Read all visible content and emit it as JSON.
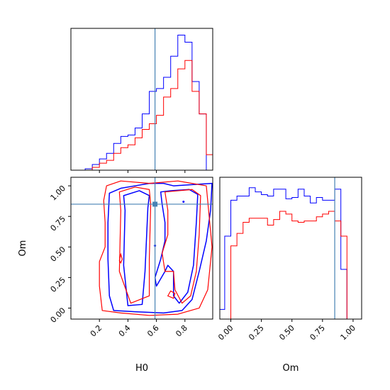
{
  "chart_data": {
    "type": "corner",
    "colors": {
      "series_a": "#0000ff",
      "series_b": "#ff0000",
      "truth": "#4682b4",
      "frame": "#000000"
    },
    "truth": {
      "H0": 0.59,
      "Om": 0.85
    },
    "axes": {
      "H0": {
        "label": "H0",
        "range": [
          0.0,
          0.995
        ],
        "ticks": [
          0.2,
          0.4,
          0.6,
          0.8
        ],
        "tick_labels": [
          "0.2",
          "0.4",
          "0.6",
          "0.8"
        ]
      },
      "Om": {
        "label": "Om",
        "range": [
          -0.09,
          1.07
        ],
        "ticks": [
          0.0,
          0.25,
          0.5,
          0.75,
          1.0
        ],
        "tick_labels": [
          "0.00",
          "0.25",
          "0.50",
          "0.75",
          "1.00"
        ]
      }
    },
    "hist_H0": {
      "bin_edges": [
        0.0,
        0.05,
        0.1,
        0.15,
        0.2,
        0.25,
        0.3,
        0.35,
        0.4,
        0.45,
        0.5,
        0.55,
        0.6,
        0.65,
        0.7,
        0.75,
        0.8,
        0.85,
        0.9,
        0.95,
        1.0
      ],
      "series": [
        {
          "values": [
            0,
            0,
            1,
            4,
            8,
            12,
            19,
            24,
            25,
            30,
            40,
            56,
            58,
            66,
            81,
            96,
            91,
            63,
            40,
            0
          ]
        },
        {
          "values": [
            0,
            0,
            0,
            2,
            5,
            7,
            12,
            16,
            18,
            23,
            29,
            33,
            39,
            52,
            58,
            72,
            78,
            56,
            40,
            11
          ]
        }
      ]
    },
    "hist_Om": {
      "bin_edges": [
        -0.1,
        -0.05,
        0.0,
        0.05,
        0.1,
        0.15,
        0.2,
        0.25,
        0.3,
        0.35,
        0.4,
        0.45,
        0.5,
        0.55,
        0.6,
        0.65,
        0.7,
        0.75,
        0.8,
        0.85,
        0.9,
        0.95,
        1.0,
        1.05
      ],
      "series": [
        {
          "values": [
            7,
            60,
            86,
            89,
            89,
            95,
            92,
            90,
            89,
            94,
            94,
            87,
            88,
            94,
            89,
            84,
            88,
            86,
            86,
            94,
            36,
            0,
            0
          ]
        },
        {
          "values": [
            0,
            0,
            53,
            62,
            70,
            73,
            73,
            73,
            68,
            72,
            78,
            76,
            71,
            70,
            71,
            71,
            74,
            76,
            78,
            71,
            60,
            0,
            0
          ]
        }
      ]
    },
    "contours": [
      {
        "series": 0,
        "outer": [
          [
            0.27,
            0.94
          ],
          [
            0.35,
            0.98
          ],
          [
            0.45,
            1.0
          ],
          [
            0.55,
            1.02
          ],
          [
            0.65,
            1.02
          ],
          [
            0.72,
            1.0
          ],
          [
            0.85,
            1.01
          ],
          [
            0.99,
            1.02
          ],
          [
            0.98,
            0.8
          ],
          [
            0.95,
            0.55
          ],
          [
            0.9,
            0.3
          ],
          [
            0.85,
            0.07
          ],
          [
            0.78,
            -0.02
          ],
          [
            0.65,
            -0.04
          ],
          [
            0.45,
            -0.03
          ],
          [
            0.3,
            -0.02
          ],
          [
            0.27,
            0.1
          ],
          [
            0.26,
            0.4
          ],
          [
            0.26,
            0.7
          ],
          [
            0.27,
            0.94
          ]
        ],
        "inner": [
          [
            [
              0.37,
              0.92
            ],
            [
              0.48,
              0.96
            ],
            [
              0.55,
              0.92
            ],
            [
              0.54,
              0.82
            ],
            [
              0.52,
              0.3
            ],
            [
              0.5,
              0.03
            ],
            [
              0.4,
              0.02
            ],
            [
              0.37,
              0.35
            ],
            [
              0.38,
              0.8
            ],
            [
              0.37,
              0.92
            ]
          ],
          [
            [
              0.63,
              0.95
            ],
            [
              0.7,
              0.96
            ],
            [
              0.83,
              0.97
            ],
            [
              0.89,
              0.93
            ],
            [
              0.88,
              0.7
            ],
            [
              0.86,
              0.35
            ],
            [
              0.82,
              0.13
            ],
            [
              0.76,
              0.04
            ],
            [
              0.72,
              0.1
            ],
            [
              0.72,
              0.3
            ],
            [
              0.68,
              0.35
            ],
            [
              0.66,
              0.3
            ],
            [
              0.6,
              0.18
            ],
            [
              0.59,
              0.25
            ],
            [
              0.63,
              0.4
            ],
            [
              0.66,
              0.55
            ],
            [
              0.66,
              0.7
            ],
            [
              0.64,
              0.85
            ],
            [
              0.63,
              0.95
            ]
          ]
        ],
        "dots": [
          [
            0.59,
            0.51
          ],
          [
            0.79,
            0.87
          ]
        ]
      },
      {
        "series": 1,
        "outer": [
          [
            0.25,
            1.0
          ],
          [
            0.35,
            1.04
          ],
          [
            0.55,
            1.02
          ],
          [
            0.75,
            1.04
          ],
          [
            0.95,
            1.0
          ],
          [
            0.99,
            0.5
          ],
          [
            0.96,
            0.15
          ],
          [
            0.9,
            0.0
          ],
          [
            0.75,
            -0.05
          ],
          [
            0.55,
            -0.06
          ],
          [
            0.35,
            -0.04
          ],
          [
            0.22,
            -0.02
          ],
          [
            0.2,
            0.18
          ],
          [
            0.2,
            0.38
          ],
          [
            0.24,
            0.5
          ],
          [
            0.24,
            0.7
          ],
          [
            0.23,
            0.88
          ],
          [
            0.25,
            1.0
          ]
        ],
        "inner": [
          [
            [
              0.34,
              0.95
            ],
            [
              0.45,
              0.99
            ],
            [
              0.55,
              0.97
            ],
            [
              0.56,
              0.85
            ],
            [
              0.55,
              0.4
            ],
            [
              0.55,
              0.1
            ],
            [
              0.42,
              0.04
            ],
            [
              0.34,
              0.3
            ],
            [
              0.35,
              0.8
            ],
            [
              0.34,
              0.95
            ]
          ],
          [
            [
              0.66,
              0.95
            ],
            [
              0.85,
              0.97
            ],
            [
              0.91,
              0.92
            ],
            [
              0.9,
              0.6
            ],
            [
              0.88,
              0.3
            ],
            [
              0.84,
              0.1
            ],
            [
              0.78,
              0.04
            ],
            [
              0.73,
              0.15
            ],
            [
              0.72,
              0.3
            ],
            [
              0.66,
              0.3
            ],
            [
              0.64,
              0.45
            ],
            [
              0.68,
              0.6
            ],
            [
              0.68,
              0.8
            ],
            [
              0.66,
              0.95
            ]
          ]
        ],
        "small": [
          [
            [
              0.34,
              0.39
            ],
            [
              0.35,
              0.44
            ],
            [
              0.36,
              0.4
            ],
            [
              0.35,
              0.37
            ],
            [
              0.34,
              0.39
            ]
          ],
          [
            [
              0.68,
              0.1
            ],
            [
              0.7,
              0.14
            ],
            [
              0.73,
              0.12
            ],
            [
              0.72,
              0.08
            ],
            [
              0.68,
              0.1
            ]
          ]
        ]
      }
    ]
  }
}
